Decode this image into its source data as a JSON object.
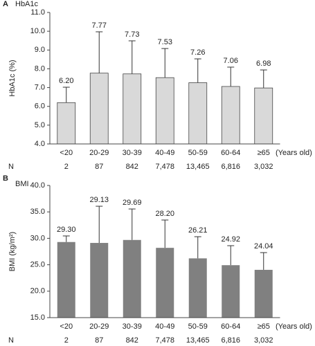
{
  "chart_data": [
    {
      "type": "bar",
      "panel": "A",
      "subtitle": "HbA1c",
      "ylabel": "HbA1c (%)",
      "xlabel": "(Years old)",
      "categories": [
        "<20",
        "20-29",
        "30-39",
        "40-49",
        "50-59",
        "60-64",
        "≥65"
      ],
      "values": [
        6.2,
        7.77,
        7.73,
        7.53,
        7.26,
        7.06,
        6.98
      ],
      "value_labels": [
        "6.20",
        "7.77",
        "7.73",
        "7.53",
        "7.26",
        "7.06",
        "6.98"
      ],
      "errors": [
        0.82,
        2.2,
        1.76,
        1.55,
        1.27,
        1.03,
        0.96
      ],
      "color": "#d9d9d9",
      "ylim": [
        4,
        11
      ],
      "yticks": [
        {
          "value": 4,
          "label": "4.0"
        },
        {
          "value": 5,
          "label": "5.0"
        },
        {
          "value": 6,
          "label": "6.0"
        },
        {
          "value": 7,
          "label": "7.0"
        },
        {
          "value": 8,
          "label": "8.0"
        },
        {
          "value": 9,
          "label": "9.0"
        },
        {
          "value": 10,
          "label": "10.0"
        },
        {
          "value": 11,
          "label": "11.0"
        }
      ],
      "n_label": "N",
      "n_values": [
        "2",
        "87",
        "842",
        "7,478",
        "13,465",
        "6,816",
        "3,032"
      ]
    },
    {
      "type": "bar",
      "panel": "B",
      "subtitle": "BMI",
      "ylabel": "BMI (kg/m²)",
      "xlabel": "(Years old)",
      "categories": [
        "<20",
        "20-29",
        "30-39",
        "40-49",
        "50-59",
        "60-64",
        "≥65"
      ],
      "values": [
        29.3,
        29.13,
        29.69,
        28.2,
        26.21,
        24.92,
        24.04
      ],
      "value_labels": [
        "29.30",
        "29.13",
        "29.69",
        "28.20",
        "26.21",
        "24.92",
        "24.04"
      ],
      "errors": [
        1.15,
        6.94,
        5.86,
        5.26,
        4.1,
        3.69,
        3.26
      ],
      "color": "#808080",
      "ylim": [
        15,
        40
      ],
      "yticks": [
        {
          "value": 15,
          "label": "15.0"
        },
        {
          "value": 20,
          "label": "20.0"
        },
        {
          "value": 25,
          "label": "25.0"
        },
        {
          "value": 30,
          "label": "30.0"
        },
        {
          "value": 35,
          "label": "35.0"
        },
        {
          "value": 40,
          "label": "40.0"
        }
      ],
      "n_label": "N",
      "n_values": [
        "2",
        "87",
        "842",
        "7,478",
        "13,465",
        "6,816",
        "3,032"
      ]
    }
  ]
}
